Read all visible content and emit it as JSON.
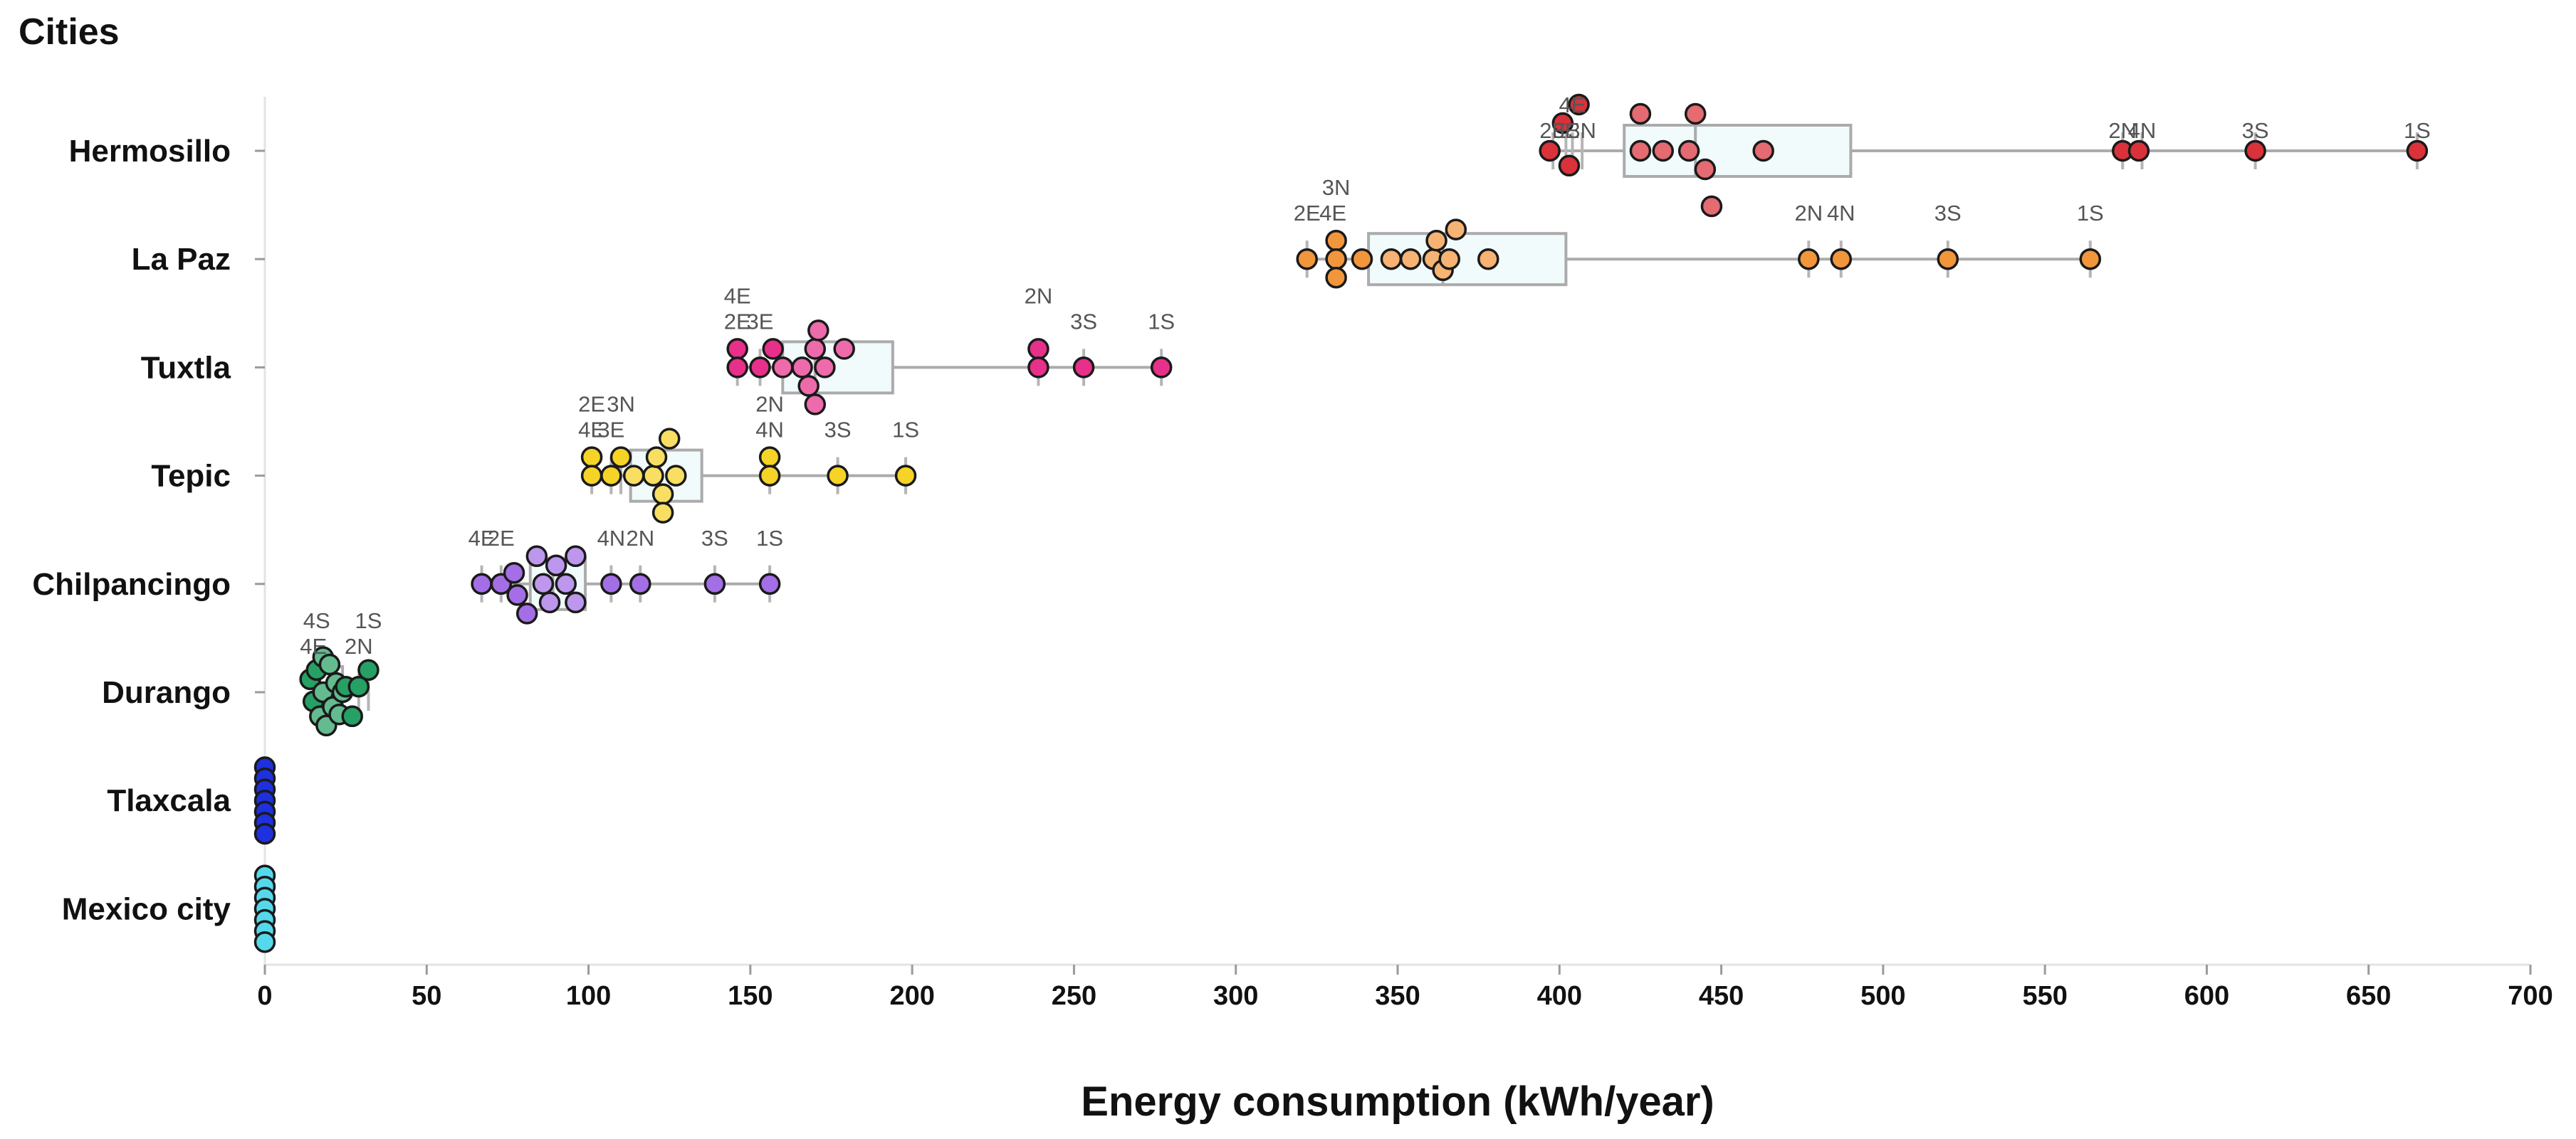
{
  "chart_data": {
    "type": "box-swarm",
    "title": "Cities",
    "xlabel": "Energy consumption (kWh/year)",
    "ylabel": "Cities",
    "xlim": [
      0,
      700
    ],
    "xticks": [
      0,
      50,
      100,
      150,
      200,
      250,
      300,
      350,
      400,
      450,
      500,
      550,
      600,
      650,
      700
    ],
    "categories": [
      "Hermosillo",
      "La Paz",
      "Tuxtla",
      "Tepic",
      "Chilpancingo",
      "Durango",
      "Tlaxcala",
      "Mexico city"
    ],
    "series": [
      {
        "name": "Hermosillo",
        "color": "#d9323a",
        "box": {
          "min": 397,
          "q1": 420,
          "median": 442,
          "q3": 490,
          "max": 665
        },
        "points": [
          {
            "x": 397,
            "offset": 0
          },
          {
            "x": 401,
            "offset": -1.5
          },
          {
            "x": 403,
            "offset": 0.8
          },
          {
            "x": 406,
            "offset": -2.5
          },
          {
            "x": 425,
            "offset": -2
          },
          {
            "x": 425,
            "offset": 0
          },
          {
            "x": 432,
            "offset": 0
          },
          {
            "x": 440,
            "offset": 0
          },
          {
            "x": 442,
            "offset": -2
          },
          {
            "x": 445,
            "offset": 1
          },
          {
            "x": 447,
            "offset": 3
          },
          {
            "x": 463,
            "offset": 0
          },
          {
            "x": 574,
            "offset": 0
          },
          {
            "x": 579,
            "offset": 0
          },
          {
            "x": 615,
            "offset": 0
          },
          {
            "x": 665,
            "offset": 0
          }
        ],
        "labels": [
          {
            "text": "4E",
            "x": 404,
            "level": 2
          },
          {
            "text": "2E",
            "x": 398,
            "level": 1
          },
          {
            "text": "3E",
            "x": 402,
            "level": 1
          },
          {
            "text": "3N",
            "x": 407,
            "level": 1
          },
          {
            "text": "2N",
            "x": 574,
            "level": 1
          },
          {
            "text": "4N",
            "x": 580,
            "level": 1
          },
          {
            "text": "3S",
            "x": 615,
            "level": 1
          },
          {
            "text": "1S",
            "x": 665,
            "level": 1
          }
        ]
      },
      {
        "name": "La Paz",
        "color": "#f2963c",
        "box": {
          "min": 322,
          "q1": 341,
          "median": 364,
          "q3": 402,
          "max": 564
        },
        "points": [
          {
            "x": 322,
            "offset": 0
          },
          {
            "x": 331,
            "offset": -1
          },
          {
            "x": 331,
            "offset": 0
          },
          {
            "x": 331,
            "offset": 1
          },
          {
            "x": 339,
            "offset": 0
          },
          {
            "x": 348,
            "offset": 0
          },
          {
            "x": 354,
            "offset": 0
          },
          {
            "x": 361,
            "offset": 0
          },
          {
            "x": 362,
            "offset": -1
          },
          {
            "x": 364,
            "offset": 0.6
          },
          {
            "x": 366,
            "offset": 0
          },
          {
            "x": 368,
            "offset": -1.6
          },
          {
            "x": 378,
            "offset": 0
          },
          {
            "x": 477,
            "offset": 0
          },
          {
            "x": 487,
            "offset": 0
          },
          {
            "x": 520,
            "offset": 0
          },
          {
            "x": 564,
            "offset": 0
          }
        ],
        "labels": [
          {
            "text": "3N",
            "x": 331,
            "level": 3
          },
          {
            "text": "2E",
            "x": 322,
            "level": 2
          },
          {
            "text": "4E",
            "x": 330,
            "level": 2
          },
          {
            "text": "2N",
            "x": 477,
            "level": 2
          },
          {
            "text": "4N",
            "x": 487,
            "level": 2
          },
          {
            "text": "3S",
            "x": 520,
            "level": 2
          },
          {
            "text": "1S",
            "x": 564,
            "level": 2
          }
        ]
      },
      {
        "name": "Tuxtla",
        "color": "#e6308a",
        "box": {
          "min": 146,
          "q1": 160,
          "median": 170,
          "q3": 194,
          "max": 277
        },
        "points": [
          {
            "x": 146,
            "offset": -1
          },
          {
            "x": 146,
            "offset": 0
          },
          {
            "x": 153,
            "offset": 0
          },
          {
            "x": 157,
            "offset": -1
          },
          {
            "x": 160,
            "offset": 0
          },
          {
            "x": 166,
            "offset": 0
          },
          {
            "x": 168,
            "offset": 1
          },
          {
            "x": 170,
            "offset": -1
          },
          {
            "x": 170,
            "offset": 2
          },
          {
            "x": 171,
            "offset": -2
          },
          {
            "x": 173,
            "offset": 0
          },
          {
            "x": 179,
            "offset": -1
          },
          {
            "x": 239,
            "offset": -1
          },
          {
            "x": 239,
            "offset": 0
          },
          {
            "x": 253,
            "offset": 0
          },
          {
            "x": 277,
            "offset": 0
          }
        ],
        "labels": [
          {
            "text": "4E",
            "x": 146,
            "level": 3
          },
          {
            "text": "2E",
            "x": 146,
            "level": 2
          },
          {
            "text": "3E",
            "x": 153,
            "level": 2
          },
          {
            "text": "2N",
            "x": 239,
            "level": 3
          },
          {
            "text": "3S",
            "x": 253,
            "level": 2
          },
          {
            "text": "1S",
            "x": 277,
            "level": 2
          }
        ]
      },
      {
        "name": "Tepic",
        "color": "#f5d327",
        "box": {
          "min": 101,
          "q1": 113,
          "median": 122,
          "q3": 135,
          "max": 198
        },
        "points": [
          {
            "x": 101,
            "offset": -1
          },
          {
            "x": 101,
            "offset": 0
          },
          {
            "x": 107,
            "offset": 0
          },
          {
            "x": 110,
            "offset": -1
          },
          {
            "x": 114,
            "offset": 0
          },
          {
            "x": 120,
            "offset": 0
          },
          {
            "x": 121,
            "offset": -1
          },
          {
            "x": 123,
            "offset": 1
          },
          {
            "x": 123,
            "offset": 2
          },
          {
            "x": 125,
            "offset": -2
          },
          {
            "x": 127,
            "offset": 0
          },
          {
            "x": 156,
            "offset": -1
          },
          {
            "x": 156,
            "offset": 0
          },
          {
            "x": 177,
            "offset": 0
          },
          {
            "x": 198,
            "offset": 0
          }
        ],
        "labels": [
          {
            "text": "2E",
            "x": 101,
            "level": 3
          },
          {
            "text": "3N",
            "x": 110,
            "level": 3
          },
          {
            "text": "4E",
            "x": 101,
            "level": 2
          },
          {
            "text": "3E",
            "x": 107,
            "level": 2
          },
          {
            "text": "2N",
            "x": 156,
            "level": 3
          },
          {
            "text": "4N",
            "x": 156,
            "level": 2
          },
          {
            "text": "3S",
            "x": 177,
            "level": 2
          },
          {
            "text": "1S",
            "x": 198,
            "level": 2
          }
        ]
      },
      {
        "name": "Chilpancingo",
        "color": "#a46ee6",
        "box": {
          "min": 67,
          "q1": 82,
          "median": 89,
          "q3": 99,
          "max": 156
        },
        "points": [
          {
            "x": 67,
            "offset": 0
          },
          {
            "x": 73,
            "offset": 0
          },
          {
            "x": 77,
            "offset": -0.6
          },
          {
            "x": 78,
            "offset": 0.6
          },
          {
            "x": 81,
            "offset": 1.6
          },
          {
            "x": 84,
            "offset": -1.5
          },
          {
            "x": 86,
            "offset": 0
          },
          {
            "x": 88,
            "offset": 1
          },
          {
            "x": 90,
            "offset": -1
          },
          {
            "x": 93,
            "offset": 0
          },
          {
            "x": 96,
            "offset": -1.5
          },
          {
            "x": 96,
            "offset": 1
          },
          {
            "x": 107,
            "offset": 0
          },
          {
            "x": 116,
            "offset": 0
          },
          {
            "x": 139,
            "offset": 0
          },
          {
            "x": 156,
            "offset": 0
          }
        ],
        "labels": [
          {
            "text": "4E",
            "x": 67,
            "level": 2
          },
          {
            "text": "2E",
            "x": 73,
            "level": 2
          },
          {
            "text": "4N",
            "x": 107,
            "level": 2
          },
          {
            "text": "2N",
            "x": 116,
            "level": 2
          },
          {
            "text": "3S",
            "x": 139,
            "level": 2
          },
          {
            "text": "1S",
            "x": 156,
            "level": 2
          }
        ]
      },
      {
        "name": "Durango",
        "color": "#26a064",
        "box": {
          "min": 14,
          "q1": 17,
          "median": 20,
          "q3": 24,
          "max": 32
        },
        "points": [
          {
            "x": 14,
            "offset": -0.7
          },
          {
            "x": 15,
            "offset": 0.5
          },
          {
            "x": 16,
            "offset": -1.2
          },
          {
            "x": 17,
            "offset": 1.3
          },
          {
            "x": 18,
            "offset": -1.9
          },
          {
            "x": 18,
            "offset": 0
          },
          {
            "x": 19,
            "offset": 1.8
          },
          {
            "x": 20,
            "offset": -1.5
          },
          {
            "x": 21,
            "offset": 0.8
          },
          {
            "x": 22,
            "offset": -0.5
          },
          {
            "x": 23,
            "offset": 1.2
          },
          {
            "x": 24,
            "offset": 0
          },
          {
            "x": 25,
            "offset": -0.3
          },
          {
            "x": 27,
            "offset": 1.3
          },
          {
            "x": 29,
            "offset": -0.3
          },
          {
            "x": 32,
            "offset": -1.2
          }
        ],
        "labels": [
          {
            "text": "4S",
            "x": 16,
            "level": 3
          },
          {
            "text": "4E",
            "x": 15,
            "level": 2
          },
          {
            "text": "1S",
            "x": 32,
            "level": 3
          },
          {
            "text": "2N",
            "x": 29,
            "level": 2
          }
        ]
      },
      {
        "name": "Tlaxcala",
        "color": "#1f30de",
        "box": {
          "min": 0,
          "q1": 0,
          "median": 0,
          "q3": 0,
          "max": 0
        },
        "points": [
          {
            "x": 0,
            "offset": -1.8
          },
          {
            "x": 0,
            "offset": -1.2
          },
          {
            "x": 0,
            "offset": -0.6
          },
          {
            "x": 0,
            "offset": 0
          },
          {
            "x": 0,
            "offset": 0.6
          },
          {
            "x": 0,
            "offset": 1.2
          },
          {
            "x": 0,
            "offset": 1.8
          }
        ],
        "labels": []
      },
      {
        "name": "Mexico city",
        "color": "#56d8ec",
        "box": {
          "min": 0,
          "q1": 0,
          "median": 0,
          "q3": 0,
          "max": 0
        },
        "points": [
          {
            "x": 0,
            "offset": -1.8
          },
          {
            "x": 0,
            "offset": -1.2
          },
          {
            "x": 0,
            "offset": -0.6
          },
          {
            "x": 0,
            "offset": 0
          },
          {
            "x": 0,
            "offset": 0.6
          },
          {
            "x": 0,
            "offset": 1.2
          },
          {
            "x": 0,
            "offset": 1.8
          }
        ],
        "labels": []
      }
    ]
  }
}
